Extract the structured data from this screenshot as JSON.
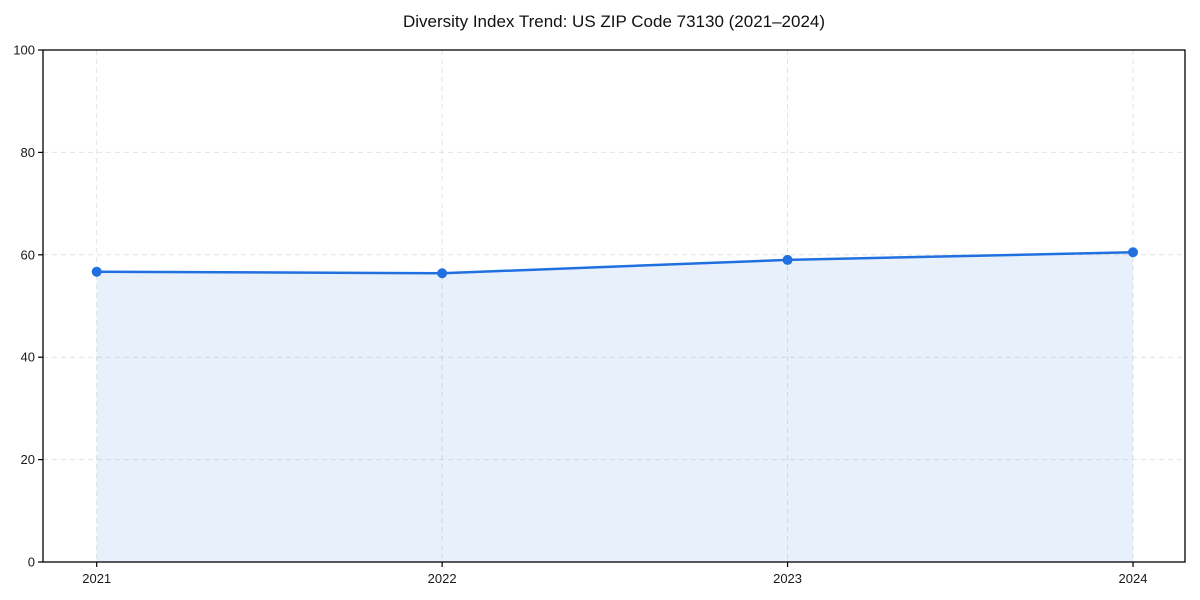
{
  "chart_data": {
    "type": "area",
    "title": "Diversity Index Trend: US ZIP Code 73130 (2021–2024)",
    "categories": [
      "2021",
      "2022",
      "2023",
      "2024"
    ],
    "values": [
      56.7,
      56.4,
      59.0,
      60.5
    ],
    "series_name": "Diversity Index",
    "xlabel": "",
    "ylabel": "",
    "ylim": [
      0,
      100
    ],
    "yticks": [
      0,
      20,
      40,
      60,
      80,
      100
    ],
    "grid": true,
    "grid_style": "dashed",
    "legend": false,
    "marker": "circle",
    "colors": {
      "line": "#2170e0",
      "marker": "#2170e0",
      "fill": "rgba(33,112,224,0.10)",
      "grid": "#e3e3e3",
      "spine": "#000000",
      "tick_label": "#1a1a1a",
      "background": "#ffffff"
    }
  }
}
